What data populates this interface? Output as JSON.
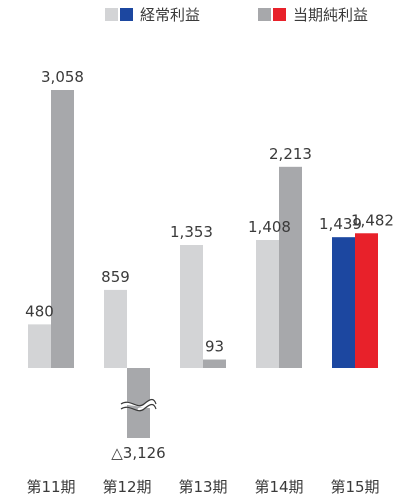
{
  "chart_data": {
    "type": "bar",
    "categories": [
      "第11期",
      "第12期",
      "第13期",
      "第14期",
      "第15期"
    ],
    "series": [
      {
        "name": "経常利益",
        "values": [
          480,
          859,
          1353,
          1408,
          1439
        ],
        "value_labels": [
          "480",
          "859",
          "1,353",
          "1,408",
          "1,439"
        ],
        "color": "#d3d4d6",
        "highlight_color": "#1c47a0"
      },
      {
        "name": "当期純利益",
        "values": [
          3058,
          -3126,
          93,
          2213,
          1482
        ],
        "value_labels": [
          "3,058",
          "△3,126",
          "93",
          "2,213",
          "1,482"
        ],
        "color": "#a7a8ab",
        "highlight_color": "#e8212a"
      }
    ],
    "highlight_category": "第15期",
    "axis_break": {
      "category": "第12期",
      "series": "当期純利益"
    },
    "legend_position": "top-right",
    "grid": false
  }
}
